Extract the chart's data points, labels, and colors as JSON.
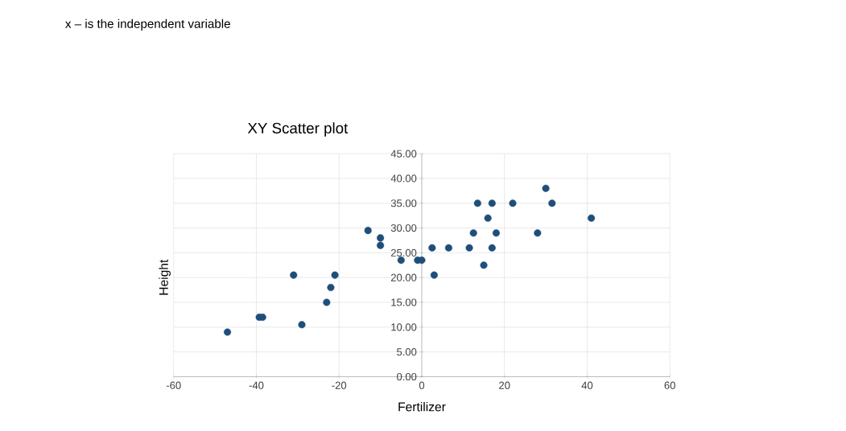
{
  "chart_data": {
    "type": "scatter",
    "title": "XY Scatter plot",
    "xlabel": "Fertilizer",
    "ylabel": "Height",
    "annotations": [
      "x – is the independent variable"
    ],
    "x": [
      -47,
      -39.3,
      -38.5,
      -31,
      -29,
      -23,
      -22,
      -21,
      -13,
      -10,
      -10,
      -5,
      -1,
      0,
      2.5,
      3,
      6.5,
      11.5,
      12.5,
      13.5,
      15,
      16,
      17,
      17,
      18,
      22,
      28,
      30,
      31.5,
      41
    ],
    "values": [
      9,
      12,
      12,
      20.5,
      10.5,
      15,
      18,
      20.5,
      29.5,
      28,
      26.5,
      23.5,
      23.5,
      23.5,
      26,
      20.5,
      26,
      26,
      29,
      35,
      22.5,
      32,
      26,
      35,
      29,
      35,
      29,
      38,
      35,
      32
    ],
    "color": "#1f4e79",
    "marker": "circle",
    "grid": true,
    "xlim": [
      -60,
      60
    ],
    "xticks": [
      -60,
      -40,
      -20,
      0,
      20,
      40,
      60
    ],
    "ylim": [
      0,
      45
    ],
    "yticks": [
      {
        "value": 0,
        "label": "0.00"
      },
      {
        "value": 5,
        "label": "5.00"
      },
      {
        "value": 10,
        "label": "10.00"
      },
      {
        "value": 15,
        "label": "15.00"
      },
      {
        "value": 20,
        "label": "20.00"
      },
      {
        "value": 25,
        "label": "25.00"
      },
      {
        "value": 30,
        "label": "30.00"
      },
      {
        "value": 35,
        "label": "35.00"
      },
      {
        "value": 40,
        "label": "40.00"
      },
      {
        "value": 45,
        "label": "45.00"
      }
    ]
  }
}
